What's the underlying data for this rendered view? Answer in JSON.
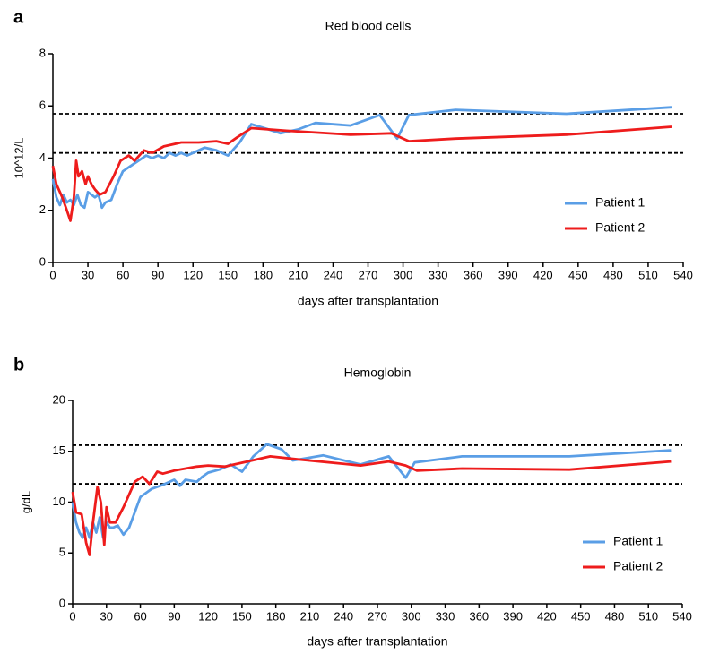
{
  "chart_data": [
    {
      "type": "line",
      "panel_label": "a",
      "title": "Red blood cells",
      "x_label": "days after transplantation",
      "y_label": "10^12/L",
      "xlim": [
        0,
        540
      ],
      "xticks": [
        0,
        30,
        60,
        90,
        120,
        150,
        180,
        210,
        240,
        270,
        300,
        330,
        360,
        390,
        420,
        450,
        480,
        510,
        540
      ],
      "ylim": [
        0,
        8
      ],
      "yticks": [
        0,
        2,
        4,
        6,
        8
      ],
      "reference_lines": [
        4.2,
        5.7
      ],
      "legend": "right",
      "series": [
        {
          "name": "Patient 1",
          "color": "#5a9ee6",
          "x": [
            0,
            3,
            6,
            9,
            12,
            15,
            18,
            21,
            24,
            27,
            30,
            33,
            36,
            39,
            42,
            45,
            50,
            55,
            60,
            70,
            80,
            85,
            90,
            95,
            100,
            105,
            110,
            115,
            120,
            130,
            140,
            150,
            160,
            170,
            185,
            195,
            210,
            225,
            255,
            280,
            295,
            305,
            345,
            440,
            530
          ],
          "values": [
            3.2,
            2.5,
            2.2,
            2.6,
            2.3,
            2.4,
            2.2,
            2.6,
            2.2,
            2.1,
            2.7,
            2.6,
            2.5,
            2.6,
            2.1,
            2.3,
            2.4,
            3.0,
            3.5,
            3.8,
            4.1,
            4.0,
            4.1,
            4.0,
            4.2,
            4.1,
            4.2,
            4.1,
            4.2,
            4.4,
            4.3,
            4.1,
            4.6,
            5.3,
            5.1,
            4.95,
            5.1,
            5.35,
            5.25,
            5.65,
            4.75,
            5.65,
            5.85,
            5.7,
            5.95
          ]
        },
        {
          "name": "Patient 2",
          "color": "#ee1c1c",
          "x": [
            0,
            3,
            8,
            12,
            15,
            18,
            20,
            22,
            25,
            28,
            30,
            33,
            36,
            40,
            45,
            52,
            58,
            65,
            70,
            78,
            85,
            95,
            110,
            125,
            140,
            150,
            158,
            170,
            200,
            255,
            290,
            305,
            345,
            440,
            530
          ],
          "values": [
            3.7,
            3.0,
            2.5,
            2.0,
            1.6,
            2.5,
            3.9,
            3.3,
            3.5,
            3.0,
            3.3,
            3.0,
            2.8,
            2.6,
            2.7,
            3.3,
            3.9,
            4.1,
            3.9,
            4.3,
            4.2,
            4.45,
            4.6,
            4.6,
            4.65,
            4.55,
            4.8,
            5.15,
            5.05,
            4.9,
            4.95,
            4.65,
            4.75,
            4.9,
            5.2
          ]
        }
      ]
    },
    {
      "type": "line",
      "panel_label": "b",
      "title": "Hemoglobin",
      "x_label": "days after transplantation",
      "y_label": "g/dL",
      "xlim": [
        0,
        540
      ],
      "xticks": [
        0,
        30,
        60,
        90,
        120,
        150,
        180,
        210,
        240,
        270,
        300,
        330,
        360,
        390,
        420,
        450,
        480,
        510,
        540
      ],
      "ylim": [
        0,
        20
      ],
      "yticks": [
        0,
        5,
        10,
        15,
        20
      ],
      "reference_lines": [
        11.8,
        15.6
      ],
      "legend": "right",
      "series": [
        {
          "name": "Patient 1",
          "color": "#5a9ee6",
          "x": [
            0,
            3,
            6,
            9,
            12,
            15,
            18,
            21,
            24,
            27,
            30,
            33,
            36,
            40,
            45,
            50,
            55,
            60,
            70,
            80,
            90,
            95,
            100,
            110,
            115,
            120,
            130,
            140,
            150,
            160,
            172,
            185,
            195,
            222,
            255,
            280,
            295,
            303,
            345,
            440,
            530
          ],
          "values": [
            10,
            8,
            7,
            6.5,
            7.5,
            6.5,
            8,
            7,
            8.5,
            6.5,
            8,
            7.5,
            7.5,
            7.7,
            6.8,
            7.5,
            9,
            10.5,
            11.3,
            11.7,
            12.2,
            11.6,
            12.2,
            12,
            12.5,
            12.9,
            13.2,
            13.7,
            13,
            14.5,
            15.7,
            15.2,
            14.1,
            14.6,
            13.7,
            14.5,
            12.4,
            13.9,
            14.5,
            14.5,
            15.1
          ]
        },
        {
          "name": "Patient 2",
          "color": "#ee1c1c",
          "x": [
            0,
            3,
            8,
            12,
            15,
            18,
            22,
            25,
            28,
            30,
            33,
            38,
            45,
            55,
            62,
            68,
            75,
            80,
            90,
            110,
            120,
            135,
            155,
            175,
            200,
            255,
            280,
            295,
            305,
            345,
            440,
            530
          ],
          "values": [
            11,
            9,
            8.8,
            6,
            4.8,
            8,
            11.5,
            10,
            5.8,
            9.5,
            8,
            8,
            9.5,
            12,
            12.5,
            11.8,
            13,
            12.8,
            13.1,
            13.5,
            13.6,
            13.5,
            14,
            14.5,
            14.2,
            13.6,
            14,
            13.6,
            13.1,
            13.3,
            13.2,
            14
          ]
        }
      ]
    }
  ]
}
